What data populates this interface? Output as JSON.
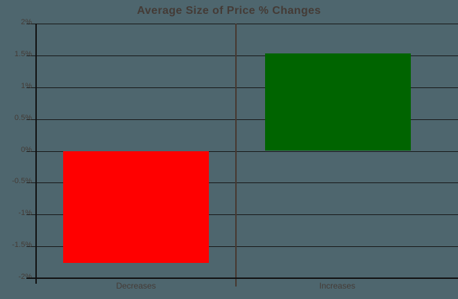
{
  "chart_data": {
    "type": "bar",
    "title": "Average Size of Price % Changes",
    "categories": [
      "Decreases",
      "Increases"
    ],
    "values": [
      -1.76,
      1.53
    ],
    "series_colors": [
      "#ff0000",
      "#006400"
    ],
    "ylim": [
      -2,
      2
    ],
    "ytick_labels": [
      "2%",
      "1.5%",
      "1%",
      "0.5%",
      "0%",
      "-0.5%",
      "-1%",
      "-1.5%",
      "-2%"
    ],
    "ytick_values": [
      2,
      1.5,
      1,
      0.5,
      0,
      -0.5,
      -1,
      -1.5,
      -2
    ],
    "xlabel": "",
    "ylabel": "",
    "grid": true,
    "legend": false
  },
  "colors": {
    "background": "#4e666e",
    "text": "#443b36",
    "gridline": "#161616",
    "axis": "#101010",
    "divider": "#463830",
    "bar_decreases": "#ff0000",
    "bar_increases": "#006400"
  }
}
